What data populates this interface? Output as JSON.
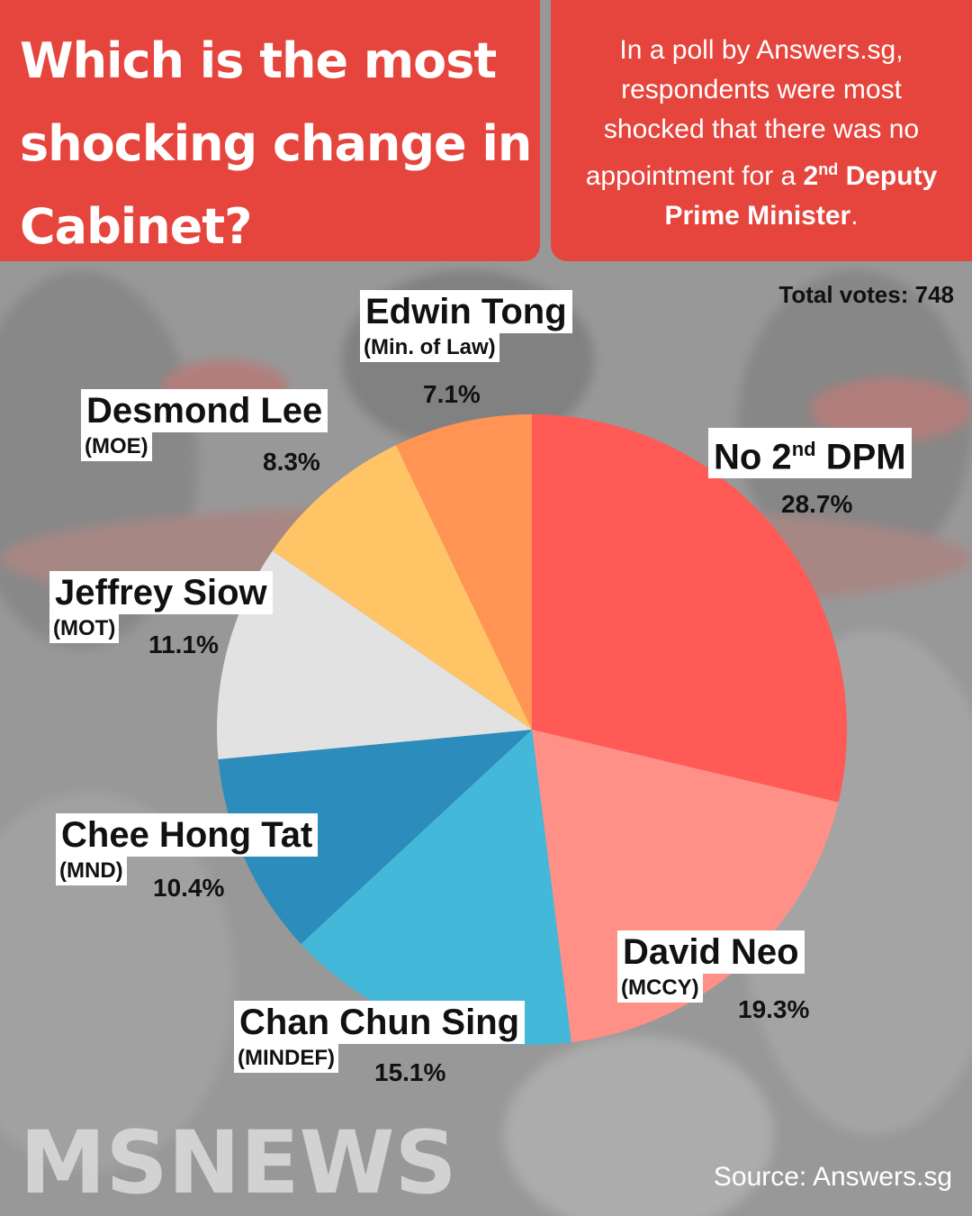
{
  "header": {
    "title": "Which is the most shocking change in Cabinet?",
    "subtitle_pre": "In a poll by Answers.sg, respondents were most shocked that there was no appointment for a ",
    "subtitle_bold_num": "2",
    "subtitle_bold_sup": "nd",
    "subtitle_bold_rest": "Deputy Prime Minister",
    "subtitle_end": "."
  },
  "total_votes": "Total votes: 748",
  "source": "Source: Answers.sg",
  "logo_text": "MSNEWS",
  "colors": {
    "header": "#e5453c",
    "no_2nd_dpm": "#ff5a55",
    "david_neo": "#ff9088",
    "chan_chun_sing": "#44b8d8",
    "chee_hong_tat": "#2c8cbc",
    "jeffrey_siow": "#e2e2e2",
    "desmond_lee": "#ffc466",
    "edwin_tong": "#ff9455"
  },
  "chart_data": {
    "type": "pie",
    "total_votes": 748,
    "start": "12 o'clock, clockwise",
    "slices": [
      {
        "name": "No 2",
        "name_sup": "nd",
        "name_rest": " DPM",
        "ministry": "",
        "value": 28.7,
        "label": "28.7%",
        "color": "#ff5a55"
      },
      {
        "name": "David Neo",
        "ministry": "(MCCY)",
        "value": 19.3,
        "label": "19.3%",
        "color": "#ff9088"
      },
      {
        "name": "Chan Chun Sing",
        "ministry": "(MINDEF)",
        "value": 15.1,
        "label": "15.1%",
        "color": "#44b8d8"
      },
      {
        "name": "Chee Hong Tat",
        "ministry": "(MND)",
        "value": 10.4,
        "label": "10.4%",
        "color": "#2c8cbc"
      },
      {
        "name": "Jeffrey Siow",
        "ministry": "(MOT)",
        "value": 11.1,
        "label": "11.1%",
        "color": "#e2e2e2"
      },
      {
        "name": "Desmond Lee",
        "ministry": "(MOE)",
        "value": 8.3,
        "label": "8.3%",
        "color": "#ffc466"
      },
      {
        "name": "Edwin Tong",
        "ministry": "(Min. of Law)",
        "value": 7.1,
        "label": "7.1%",
        "color": "#ff9455"
      }
    ]
  }
}
